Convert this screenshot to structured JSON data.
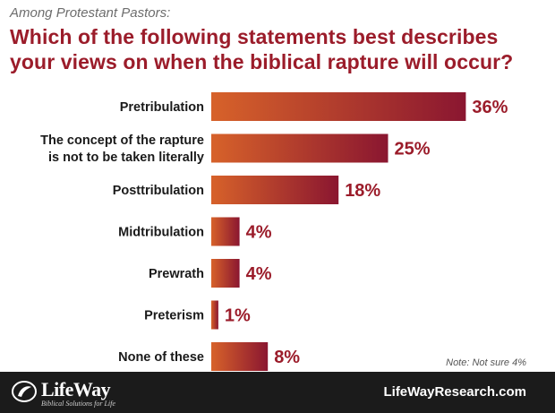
{
  "header": {
    "subtitle": "Among Protestant Pastors:",
    "title_line1": "Which of the following statements best describes",
    "title_line2": "your views on when the biblical rapture will occur?"
  },
  "note": "Note: Not sure 4%",
  "footer": {
    "brand": "LifeWay",
    "tagline": "Biblical Solutions for Life",
    "site": "LifeWayResearch.com"
  },
  "colors": {
    "bar_start": "#d7622a",
    "bar_end": "#8a1630",
    "title": "#9b1c2a",
    "value_label": "#9b1c2a",
    "footer_bg": "#1b1b1b"
  },
  "chart_data": {
    "type": "bar",
    "orientation": "horizontal",
    "categories": [
      [
        "Pretribulation"
      ],
      [
        "The concept of the rapture",
        "is not to be taken literally"
      ],
      [
        "Posttribulation"
      ],
      [
        "Midtribulation"
      ],
      [
        "Prewrath"
      ],
      [
        "Preterism"
      ],
      [
        "None of these"
      ]
    ],
    "values": [
      36,
      25,
      18,
      4,
      4,
      1,
      8
    ],
    "value_labels": [
      "36%",
      "25%",
      "18%",
      "4%",
      "4%",
      "1%",
      "8%"
    ],
    "unit": "%",
    "xlim": [
      0,
      40
    ],
    "grid": false,
    "legend": "none"
  }
}
